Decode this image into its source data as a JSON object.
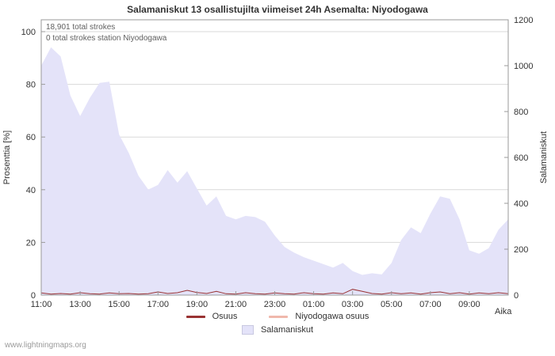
{
  "watermark": "www.lightningmaps.org",
  "chart_data": {
    "type": "area",
    "title": "Salamaniskut 13 osallistujilta viimeiset 24h Asemalta: Niyodogawa",
    "annotations": [
      "18,901 total strokes",
      "0 total strokes station Niyodogawa"
    ],
    "x_axis_label": "Aika",
    "x_tick_labels": [
      "11:00",
      "13:00",
      "15:00",
      "17:00",
      "19:00",
      "21:00",
      "23:00",
      "01:00",
      "03:00",
      "05:00",
      "07:00",
      "09:00"
    ],
    "x_times": [
      "11:00",
      "11:30",
      "12:00",
      "12:30",
      "13:00",
      "13:30",
      "14:00",
      "14:30",
      "15:00",
      "15:30",
      "16:00",
      "16:30",
      "17:00",
      "17:30",
      "18:00",
      "18:30",
      "19:00",
      "19:30",
      "20:00",
      "20:30",
      "21:00",
      "21:30",
      "22:00",
      "22:30",
      "23:00",
      "23:30",
      "00:00",
      "00:30",
      "01:00",
      "01:30",
      "02:00",
      "02:30",
      "03:00",
      "03:30",
      "04:00",
      "04:30",
      "05:00",
      "05:30",
      "06:00",
      "06:30",
      "07:00",
      "07:30",
      "08:00",
      "08:30",
      "09:00",
      "09:30",
      "10:00",
      "10:30",
      "11:00"
    ],
    "left_axis": {
      "label": "Prosenttia   [%]",
      "ticks": [
        0,
        20,
        40,
        60,
        80,
        100
      ],
      "range": [
        0,
        100
      ]
    },
    "right_axis": {
      "label": "Salamaniskut",
      "ticks": [
        0,
        200,
        400,
        600,
        800,
        1000,
        1200
      ],
      "range": [
        0,
        1200
      ]
    },
    "grid": true,
    "legend_position": "bottom",
    "series": [
      {
        "name": "Salamaniskut",
        "type": "area",
        "axis": "right",
        "color": "#e4e3f9",
        "values": [
          1000,
          1080,
          1040,
          870,
          780,
          860,
          925,
          930,
          700,
          620,
          520,
          460,
          480,
          545,
          490,
          540,
          465,
          390,
          430,
          345,
          330,
          345,
          340,
          320,
          260,
          210,
          185,
          165,
          150,
          135,
          120,
          140,
          105,
          88,
          95,
          90,
          140,
          240,
          295,
          270,
          355,
          430,
          420,
          330,
          195,
          180,
          205,
          285,
          330
        ]
      },
      {
        "name": "Osuus",
        "type": "line",
        "axis": "left",
        "color": "#993333",
        "values": [
          0.8,
          0.4,
          0.6,
          0.4,
          0.9,
          0.5,
          0.4,
          0.8,
          0.5,
          0.6,
          0.4,
          0.5,
          1.2,
          0.6,
          0.9,
          1.8,
          1.0,
          0.6,
          1.4,
          0.5,
          0.4,
          0.9,
          0.5,
          0.4,
          0.8,
          0.5,
          0.4,
          0.9,
          0.5,
          0.4,
          0.8,
          0.5,
          2.2,
          1.4,
          0.6,
          0.4,
          0.9,
          0.5,
          0.8,
          0.4,
          0.9,
          1.2,
          0.5,
          0.9,
          0.4,
          0.8,
          0.5,
          0.9,
          0.5
        ]
      },
      {
        "name": "Niyodogawa osuus",
        "type": "line",
        "axis": "left",
        "color": "#f0b8ac",
        "values": [
          0,
          0,
          0,
          0,
          0,
          0,
          0,
          0,
          0,
          0,
          0,
          0,
          0,
          0,
          0,
          0,
          0,
          0,
          0,
          0,
          0,
          0,
          0,
          0,
          0,
          0,
          0,
          0,
          0,
          0,
          0,
          0,
          0,
          0,
          0,
          0,
          0,
          0,
          0,
          0,
          0,
          0,
          0,
          0,
          0,
          0,
          0,
          0,
          0
        ]
      }
    ],
    "legend": [
      {
        "label": "Osuus",
        "color": "#993333",
        "swatch": "line"
      },
      {
        "label": "Niyodogawa osuus",
        "color": "#f0b8ac",
        "swatch": "line"
      },
      {
        "label": "Salamaniskut",
        "color": "#e4e3f9",
        "swatch": "area"
      }
    ]
  }
}
